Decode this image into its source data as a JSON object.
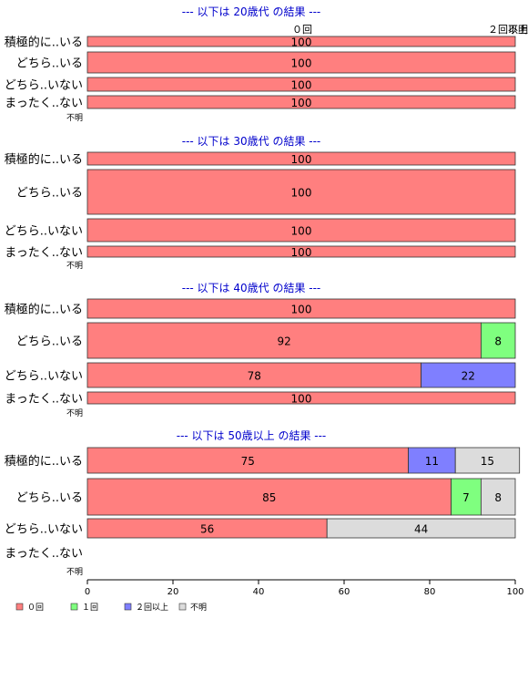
{
  "colors": {
    "zero": "#ff7f7f",
    "one": "#7fff7f",
    "two_plus": "#7f7fff",
    "unknown": "#dcdcdc",
    "title": "#0000cc",
    "axis": "#000000",
    "bar_border": "#333333"
  },
  "chart_data": {
    "type": "bar",
    "orientation": "horizontal",
    "stacked": true,
    "legend_placement": "bottom-left",
    "xlim": [
      0,
      100
    ],
    "xticks": [
      0,
      20,
      40,
      60,
      80,
      100
    ],
    "legend": [
      {
        "key": "zero",
        "label": "０回"
      },
      {
        "key": "one",
        "label": "１回"
      },
      {
        "key": "two_plus",
        "label": "２回以上"
      },
      {
        "key": "unknown",
        "label": "不明"
      }
    ],
    "top_column_labels": [
      {
        "key": "zero",
        "label": "０回"
      },
      {
        "key": "two_plus",
        "label": "２回以上"
      },
      {
        "key": "unknown",
        "label": "不明"
      }
    ],
    "panels": [
      {
        "title": "--- 以下は 20歳代 の結果 ---",
        "rows": [
          {
            "label": "積極的に..いる",
            "segments": [
              {
                "key": "zero",
                "value": 100
              }
            ]
          },
          {
            "label": "どちら..いる",
            "segments": [
              {
                "key": "zero",
                "value": 100
              }
            ]
          },
          {
            "label": "どちら..いない",
            "segments": [
              {
                "key": "zero",
                "value": 100
              }
            ]
          },
          {
            "label": "まったく..ない",
            "segments": [
              {
                "key": "zero",
                "value": 100
              }
            ]
          },
          {
            "label": "不明",
            "segments": []
          }
        ]
      },
      {
        "title": "--- 以下は 30歳代 の結果 ---",
        "rows": [
          {
            "label": "積極的に..いる",
            "segments": [
              {
                "key": "zero",
                "value": 100
              }
            ]
          },
          {
            "label": "どちら..いる",
            "segments": [
              {
                "key": "zero",
                "value": 100
              }
            ]
          },
          {
            "label": "どちら..いない",
            "segments": [
              {
                "key": "zero",
                "value": 100
              }
            ]
          },
          {
            "label": "まったく..ない",
            "segments": [
              {
                "key": "zero",
                "value": 100
              }
            ]
          },
          {
            "label": "不明",
            "segments": []
          }
        ]
      },
      {
        "title": "--- 以下は 40歳代 の結果 ---",
        "rows": [
          {
            "label": "積極的に..いる",
            "segments": [
              {
                "key": "zero",
                "value": 100
              }
            ]
          },
          {
            "label": "どちら..いる",
            "segments": [
              {
                "key": "zero",
                "value": 92
              },
              {
                "key": "one",
                "value": 8
              }
            ]
          },
          {
            "label": "どちら..いない",
            "segments": [
              {
                "key": "zero",
                "value": 78
              },
              {
                "key": "two_plus",
                "value": 22
              }
            ]
          },
          {
            "label": "まったく..ない",
            "segments": [
              {
                "key": "zero",
                "value": 100
              }
            ]
          },
          {
            "label": "不明",
            "segments": []
          }
        ]
      },
      {
        "title": "--- 以下は 50歳以上 の結果 ---",
        "rows": [
          {
            "label": "積極的に..いる",
            "segments": [
              {
                "key": "zero",
                "value": 75
              },
              {
                "key": "two_plus",
                "value": 11
              },
              {
                "key": "unknown",
                "value": 15
              }
            ]
          },
          {
            "label": "どちら..いる",
            "segments": [
              {
                "key": "zero",
                "value": 85
              },
              {
                "key": "one",
                "value": 7
              },
              {
                "key": "unknown",
                "value": 8
              }
            ]
          },
          {
            "label": "どちら..いない",
            "segments": [
              {
                "key": "zero",
                "value": 56
              },
              {
                "key": "unknown",
                "value": 44
              }
            ]
          },
          {
            "label": "まったく..ない",
            "segments": []
          },
          {
            "label": "不明",
            "segments": []
          }
        ]
      }
    ]
  }
}
